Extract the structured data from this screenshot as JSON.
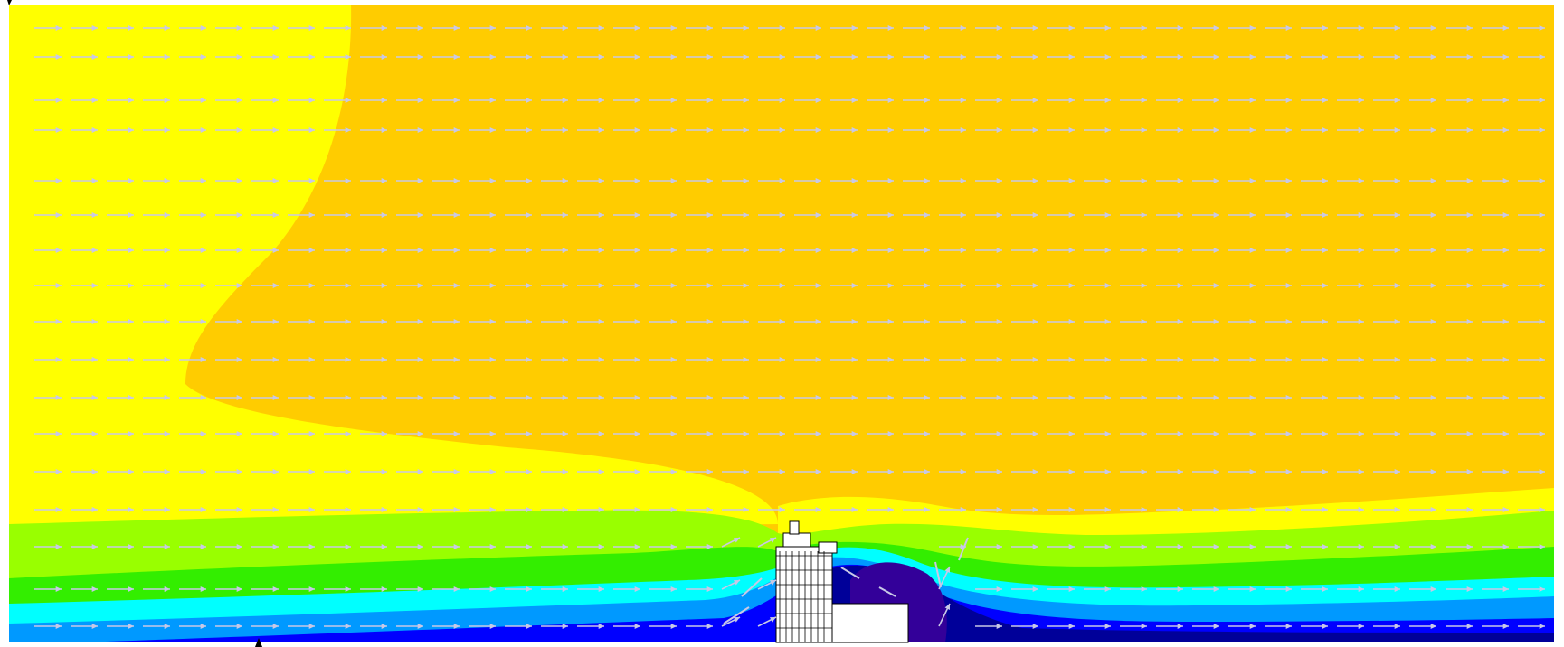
{
  "figure": {
    "kind": "cfd-velocity-field",
    "description_text": "",
    "flow_direction": "left-to-right",
    "colors": {
      "yellow": "#ffff00",
      "orange": "#ffcc00",
      "green": "#99ff00",
      "green_mid": "#33ee00",
      "cyan": "#00ffff",
      "blue_light": "#0099ff",
      "blue": "#0000ff",
      "navy": "#000099",
      "purple": "#330099",
      "arrow": "#c8c8e6",
      "building_line": "#000000"
    },
    "vector_rows": 17,
    "vector_cols": 42,
    "obstacle": "building"
  }
}
